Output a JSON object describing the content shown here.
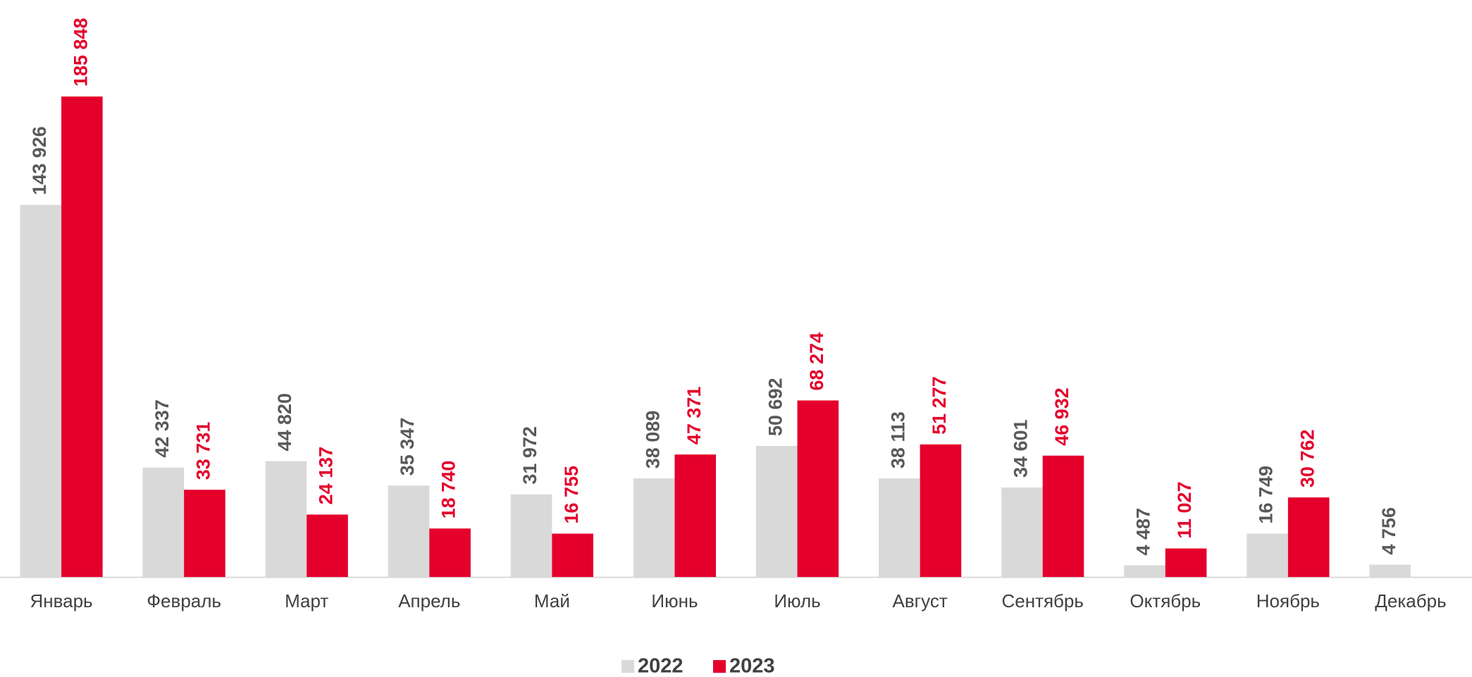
{
  "chart_data": {
    "type": "bar",
    "categories": [
      "Январь",
      "Февраль",
      "Март",
      "Апрель",
      "Май",
      "Июнь",
      "Июль",
      "Август",
      "Сентябрь",
      "Октябрь",
      "Ноябрь",
      "Декабрь"
    ],
    "series": [
      {
        "name": "2022",
        "color": "#d9d9d9",
        "label_color": "#595959",
        "values": [
          143926,
          42337,
          44820,
          35347,
          31972,
          38089,
          50692,
          38113,
          34601,
          4487,
          16749,
          4756
        ],
        "value_labels": [
          "143 926",
          "42 337",
          "44 820",
          "35 347",
          "31 972",
          "38 089",
          "50 692",
          "38 113",
          "34 601",
          "4 487",
          "16 749",
          "4 756"
        ]
      },
      {
        "name": "2023",
        "color": "#e4002b",
        "label_color": "#e4002b",
        "values": [
          185848,
          33731,
          24137,
          18740,
          16755,
          47371,
          68274,
          51277,
          46932,
          11027,
          30762,
          null
        ],
        "value_labels": [
          "185 848",
          "33 731",
          "24 137",
          "18 740",
          "16 755",
          "47 371",
          "68 274",
          "51 277",
          "46 932",
          "11 027",
          "30 762",
          null
        ]
      }
    ],
    "legend": "bottom"
  }
}
